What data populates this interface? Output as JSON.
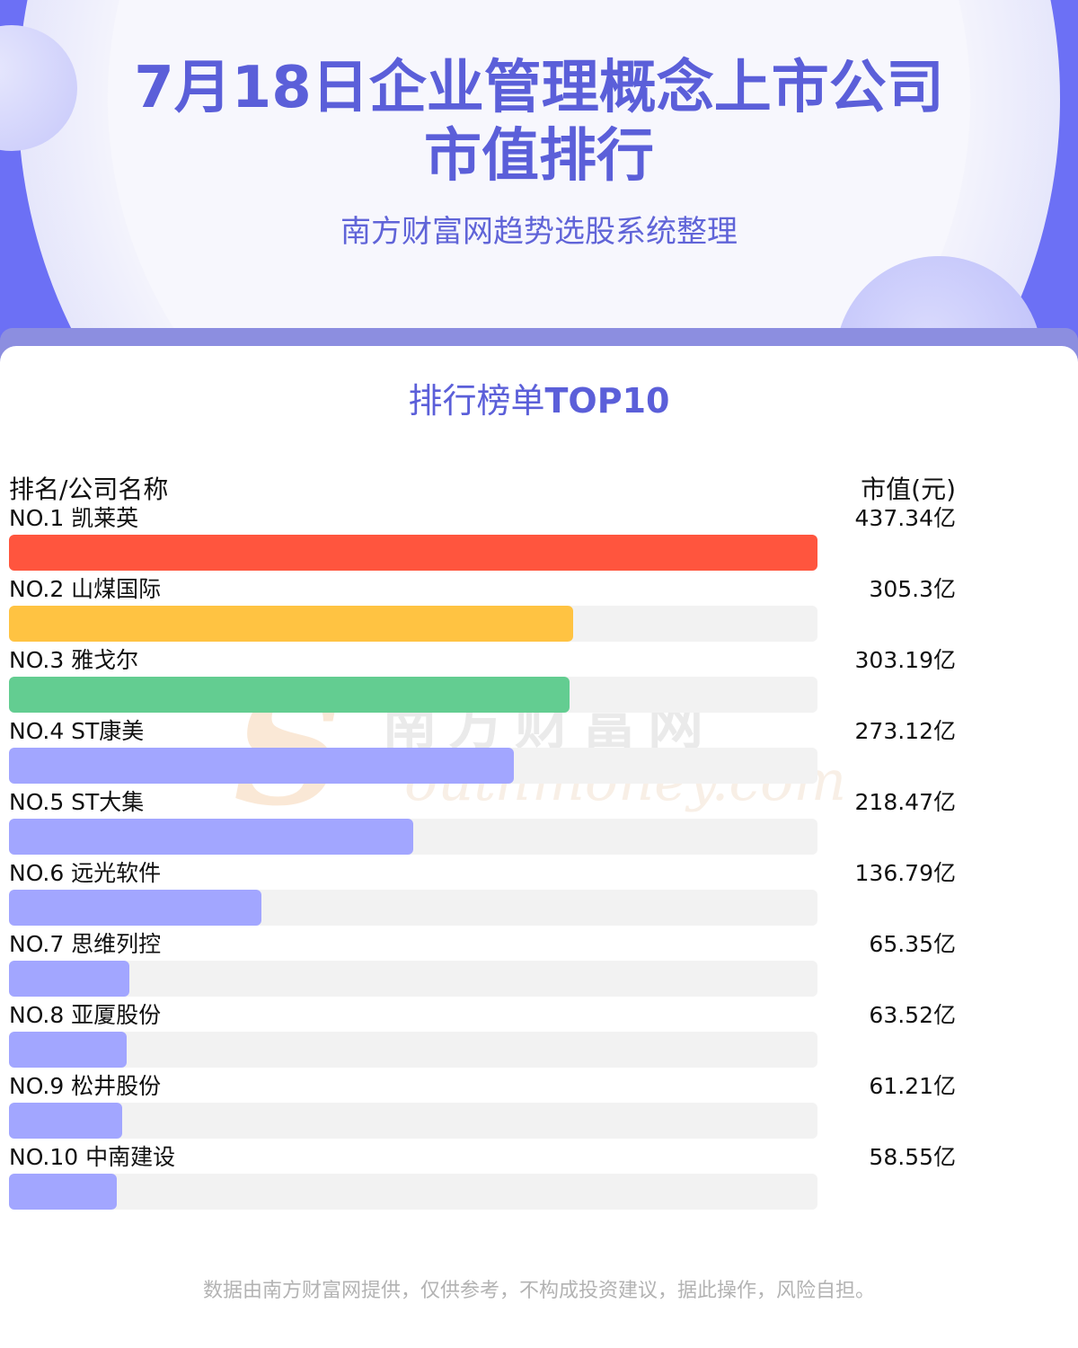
{
  "header": {
    "title_line1": "7月18日企业管理概念上市公司",
    "title_line2": "市值排行",
    "subtitle": "南方财富网趋势选股系统整理"
  },
  "ranking": {
    "title_text": "排行榜单",
    "title_bold": "TOP10",
    "col_left": "排名/公司名称",
    "col_right": "市值(元)"
  },
  "watermark": {
    "mark": "S",
    "cn": "南方财富网",
    "en": "outhmoney.com"
  },
  "footer": {
    "disclaimer": "数据由南方财富网提供，仅供参考，不构成投资建议，据此操作，风险自担。"
  },
  "chart_data": {
    "type": "bar",
    "orientation": "horizontal",
    "unit": "亿",
    "xlim": [
      0,
      437.34
    ],
    "items": [
      {
        "rank": "NO.1",
        "name": "凯莱英",
        "value": 437.34,
        "value_label": "437.34亿",
        "color": "#ff553e"
      },
      {
        "rank": "NO.2",
        "name": "山煤国际",
        "value": 305.3,
        "value_label": "305.3亿",
        "color": "#ffc342"
      },
      {
        "rank": "NO.3",
        "name": "雅戈尔",
        "value": 303.19,
        "value_label": "303.19亿",
        "color": "#63cd91"
      },
      {
        "rank": "NO.4",
        "name": "ST康美",
        "value": 273.12,
        "value_label": "273.12亿",
        "color": "#a2a6ff"
      },
      {
        "rank": "NO.5",
        "name": "ST大集",
        "value": 218.47,
        "value_label": "218.47亿",
        "color": "#a2a6ff"
      },
      {
        "rank": "NO.6",
        "name": "远光软件",
        "value": 136.79,
        "value_label": "136.79亿",
        "color": "#a2a6ff"
      },
      {
        "rank": "NO.7",
        "name": "思维列控",
        "value": 65.35,
        "value_label": "65.35亿",
        "color": "#a2a6ff"
      },
      {
        "rank": "NO.8",
        "name": "亚厦股份",
        "value": 63.52,
        "value_label": "63.52亿",
        "color": "#a2a6ff"
      },
      {
        "rank": "NO.9",
        "name": "松井股份",
        "value": 61.21,
        "value_label": "61.21亿",
        "color": "#a2a6ff"
      },
      {
        "rank": "NO.10",
        "name": "中南建设",
        "value": 58.55,
        "value_label": "58.55亿",
        "color": "#a2a6ff"
      }
    ]
  }
}
